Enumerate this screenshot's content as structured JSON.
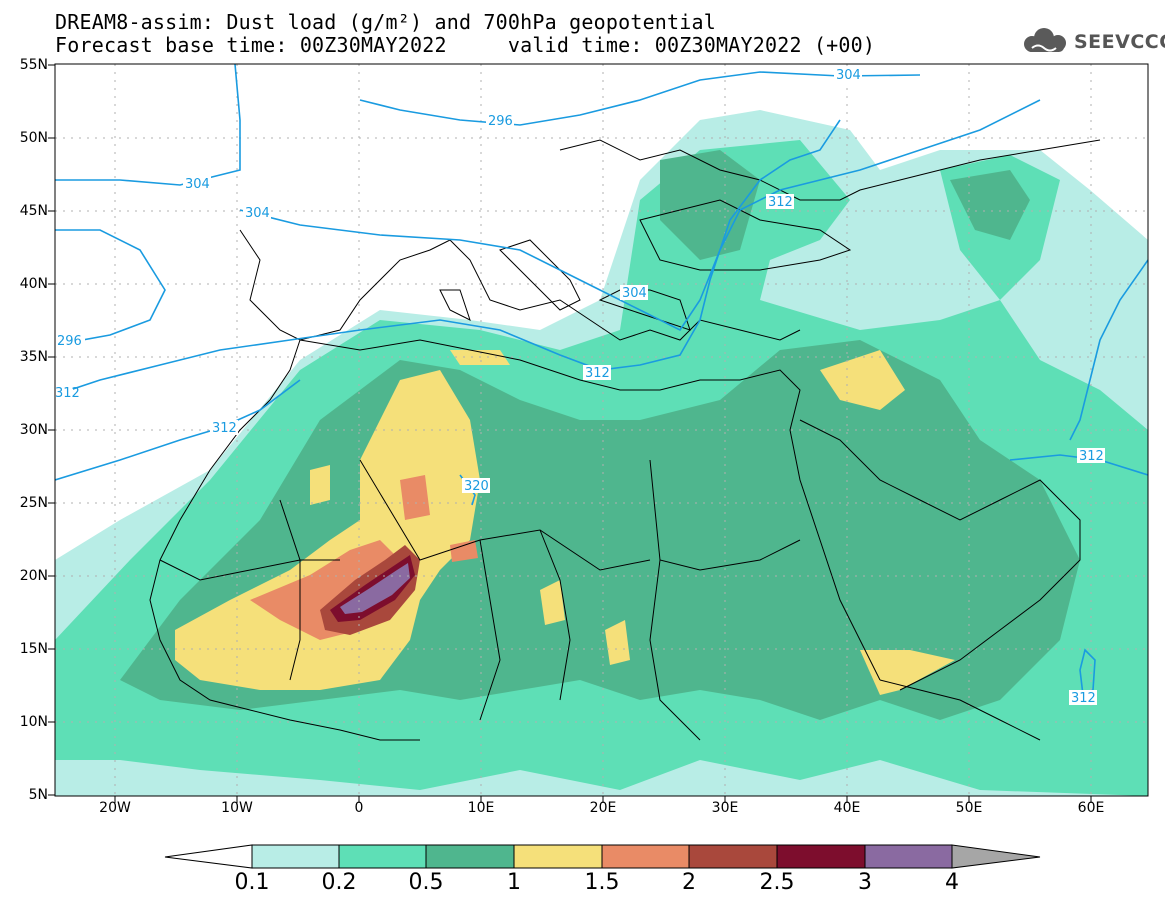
{
  "title_line1": "DREAM8-assim: Dust load (g/m²) and 700hPa geopotential",
  "title_line2": "Forecast base time: 00Z30MAY2022     valid time: 00Z30MAY2022 (+00)",
  "logo_text": "SEEVCCC",
  "lat_labels": [
    "55N",
    "50N",
    "45N",
    "40N",
    "35N",
    "30N",
    "25N",
    "20N",
    "15N",
    "10N",
    "5N"
  ],
  "lon_labels": [
    "20W",
    "10W",
    "0",
    "10E",
    "20E",
    "30E",
    "40E",
    "50E",
    "60E"
  ],
  "contour_labels": [
    "304",
    "296",
    "304",
    "304",
    "312",
    "296",
    "304",
    "312",
    "312",
    "320",
    "312",
    "312",
    "312"
  ],
  "colorbar": {
    "ticks": [
      "0.1",
      "0.2",
      "0.5",
      "1",
      "1.5",
      "2",
      "2.5",
      "3",
      "4"
    ],
    "colors": [
      "#b8ede6",
      "#5edfb6",
      "#4fb68e",
      "#f5e07a",
      "#e98b66",
      "#a9483c",
      "#7d0d2d",
      "#8a6aa1",
      "#a6a6a6"
    ]
  },
  "colors": {
    "contour": "#1a9be0",
    "border": "#000000",
    "dot_grid": "#b0b0b0"
  }
}
